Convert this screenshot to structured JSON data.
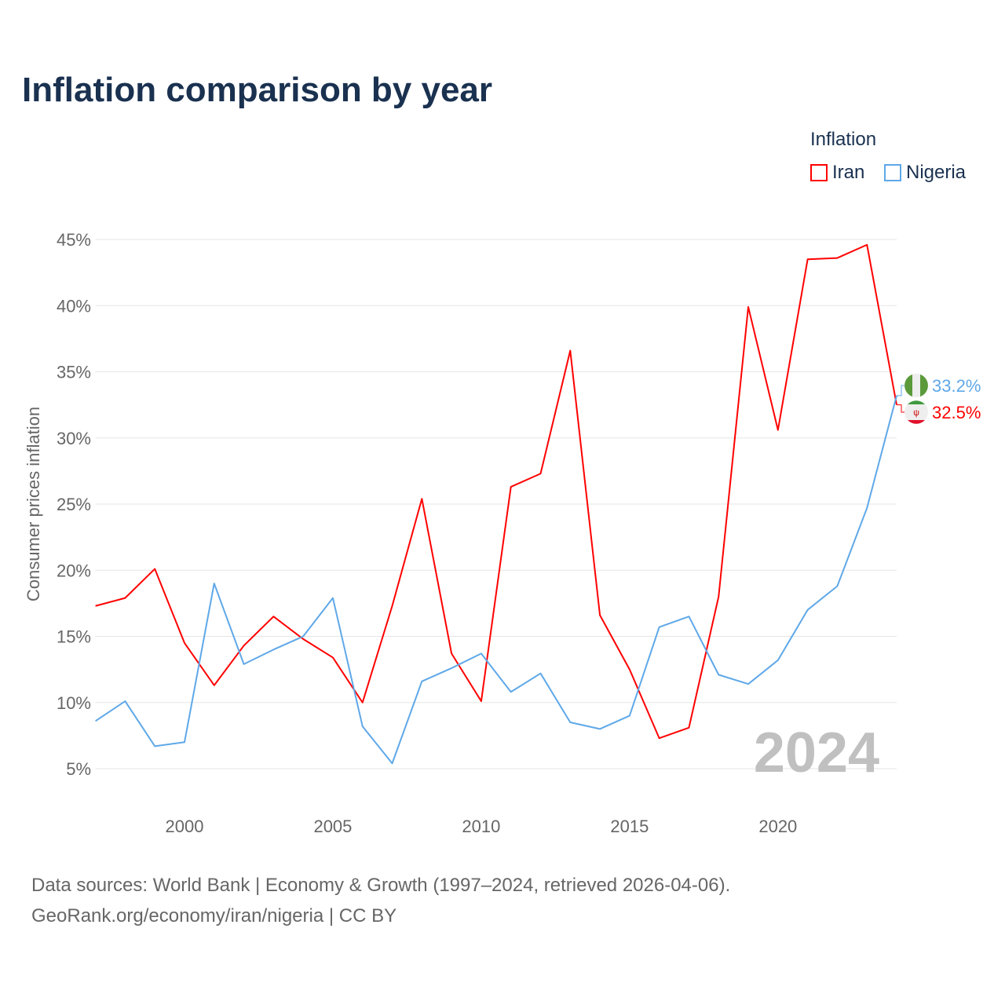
{
  "chart_data": {
    "type": "line",
    "title": "Inflation comparison by year",
    "ylabel": "Consumer prices inflation",
    "xlabel": "",
    "legend_title": "Inflation",
    "legend_position": "top-right",
    "ylim": [
      5,
      45
    ],
    "xlim": [
      1997,
      2024
    ],
    "yticks": [
      "5%",
      "10%",
      "15%",
      "20%",
      "25%",
      "30%",
      "35%",
      "40%",
      "45%"
    ],
    "ytick_values": [
      5,
      10,
      15,
      20,
      25,
      30,
      35,
      40,
      45
    ],
    "xticks": [
      "2000",
      "2005",
      "2010",
      "2015",
      "2020"
    ],
    "xtick_values": [
      2000,
      2005,
      2010,
      2015,
      2020
    ],
    "year_watermark": "2024",
    "x": [
      1997,
      1998,
      1999,
      2000,
      2001,
      2002,
      2003,
      2004,
      2005,
      2006,
      2007,
      2008,
      2009,
      2010,
      2011,
      2012,
      2013,
      2014,
      2015,
      2016,
      2017,
      2018,
      2019,
      2020,
      2021,
      2022,
      2023,
      2024
    ],
    "series": [
      {
        "name": "Iran",
        "color": "#ff0000",
        "end_label": "32.5%",
        "values": [
          17.3,
          17.9,
          20.1,
          14.5,
          11.3,
          14.3,
          16.5,
          14.8,
          13.4,
          10.0,
          17.3,
          25.4,
          13.7,
          10.1,
          26.3,
          27.3,
          36.6,
          16.6,
          12.5,
          7.3,
          8.1,
          18.0,
          39.9,
          30.6,
          43.5,
          43.6,
          44.6,
          32.5
        ]
      },
      {
        "name": "Nigeria",
        "color": "#5fa8e8",
        "end_label": "33.2%",
        "values": [
          8.6,
          10.1,
          6.7,
          7.0,
          19.0,
          12.9,
          14.0,
          15.0,
          17.9,
          8.2,
          5.4,
          11.6,
          12.6,
          13.7,
          10.8,
          12.2,
          8.5,
          8.0,
          9.0,
          15.7,
          16.5,
          12.1,
          11.4,
          13.2,
          17.0,
          18.8,
          24.7,
          33.2
        ]
      }
    ]
  },
  "source": {
    "line1": "Data sources: World Bank | Economy & Growth (1997–2024, retrieved 2026-04-06).",
    "line2": "GeoRank.org/economy/iran/nigeria | CC BY"
  }
}
